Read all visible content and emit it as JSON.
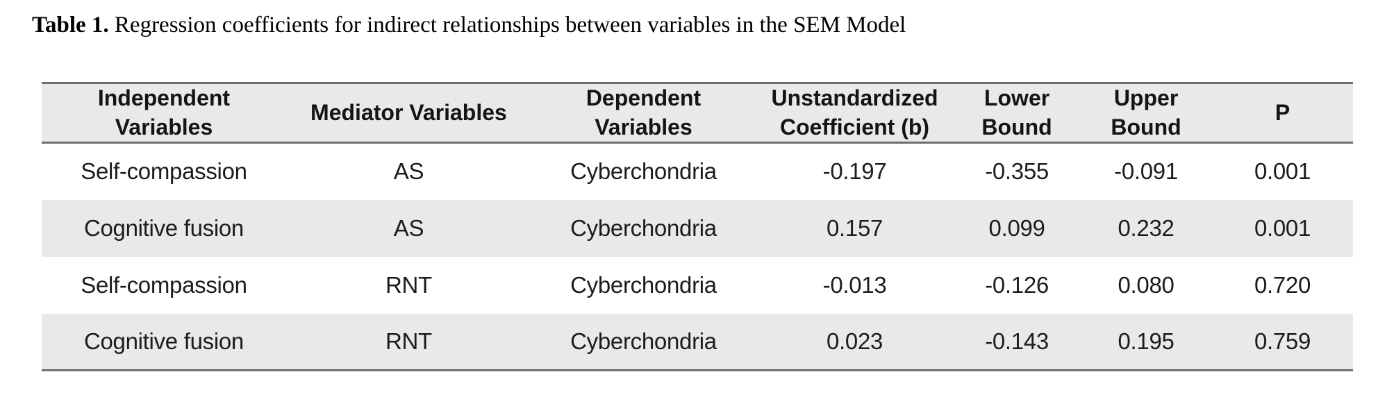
{
  "caption": {
    "label": "Table 1.",
    "text": " Regression coefficients for indirect relationships between variables in the SEM Model"
  },
  "table": {
    "columns": [
      "Independent Variables",
      "Mediator Variables",
      "Dependent Variables",
      "Unstandardized Coefficient (b)",
      "Lower Bound",
      "Upper Bound",
      "P"
    ],
    "rows": [
      [
        "Self-compassion",
        "AS",
        "Cyberchondria",
        "-0.197",
        "-0.355",
        "-0.091",
        "0.001"
      ],
      [
        "Cognitive fusion",
        "AS",
        "Cyberchondria",
        "0.157",
        "0.099",
        "0.232",
        "0.001"
      ],
      [
        "Self-compassion",
        "RNT",
        "Cyberchondria",
        "-0.013",
        "-0.126",
        "0.080",
        "0.720"
      ],
      [
        "Cognitive fusion",
        "RNT",
        "Cyberchondria",
        "0.023",
        "-0.143",
        "0.195",
        "0.759"
      ]
    ]
  },
  "colors": {
    "band_gray": "#e9e9e9",
    "border_gray": "#6e6e6e",
    "text": "#1c1c1c",
    "background": "#ffffff"
  }
}
